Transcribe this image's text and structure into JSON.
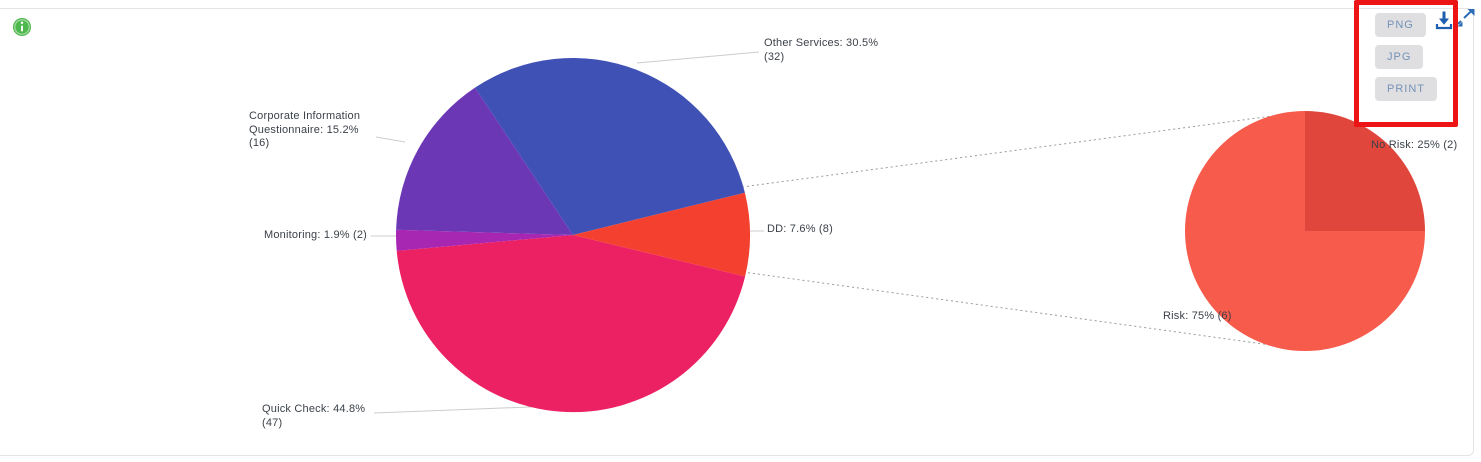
{
  "toolbar": {
    "buttons": [
      {
        "label": "PNG"
      },
      {
        "label": "JPG"
      },
      {
        "label": "PRINT"
      }
    ],
    "button_bg": "#dfdfe2",
    "button_text_color": "#7492b6",
    "icon_color": "#1d5fae"
  },
  "icons": {
    "info_color": "#43b649",
    "download": "download-icon",
    "expand": "expand-icon",
    "info": "info-icon"
  },
  "annotation": {
    "highlight_box_color": "#ec1414"
  },
  "chart_data": [
    {
      "type": "pie",
      "name": "services-distribution",
      "title": "",
      "legend": "none",
      "start_angle_deg": 326.4,
      "slices": [
        {
          "label": "Other Services",
          "pct": 30.5,
          "count": 32,
          "color": "#3f51b5",
          "display": "Other Services: 30.5%\n(32)"
        },
        {
          "label": "DD",
          "pct": 7.6,
          "count": 8,
          "color": "#f4412f",
          "display": "DD: 7.6% (8)"
        },
        {
          "label": "Quick Check",
          "pct": 44.8,
          "count": 47,
          "color": "#ec2163",
          "display": "Quick Check: 44.8%\n(47)"
        },
        {
          "label": "Monitoring",
          "pct": 1.9,
          "count": 2,
          "color": "#a727b2",
          "display": "Monitoring: 1.9% (2)"
        },
        {
          "label": "Corporate Information Questionnaire",
          "pct": 15.2,
          "count": 16,
          "color": "#6c37b5",
          "display": "Corporate Information\nQuestionnaire: 15.2%\n(16)"
        }
      ]
    },
    {
      "type": "pie",
      "name": "dd-risk-breakdown",
      "title": "",
      "legend": "none",
      "start_angle_deg": 0,
      "slices": [
        {
          "label": "No Risk",
          "pct": 25,
          "count": 2,
          "color": "#e0463b",
          "display": "No Risk: 25% (2)"
        },
        {
          "label": "Risk",
          "pct": 75,
          "count": 6,
          "color": "#f75b4c",
          "display": "Risk: 75% (6)"
        }
      ]
    }
  ]
}
